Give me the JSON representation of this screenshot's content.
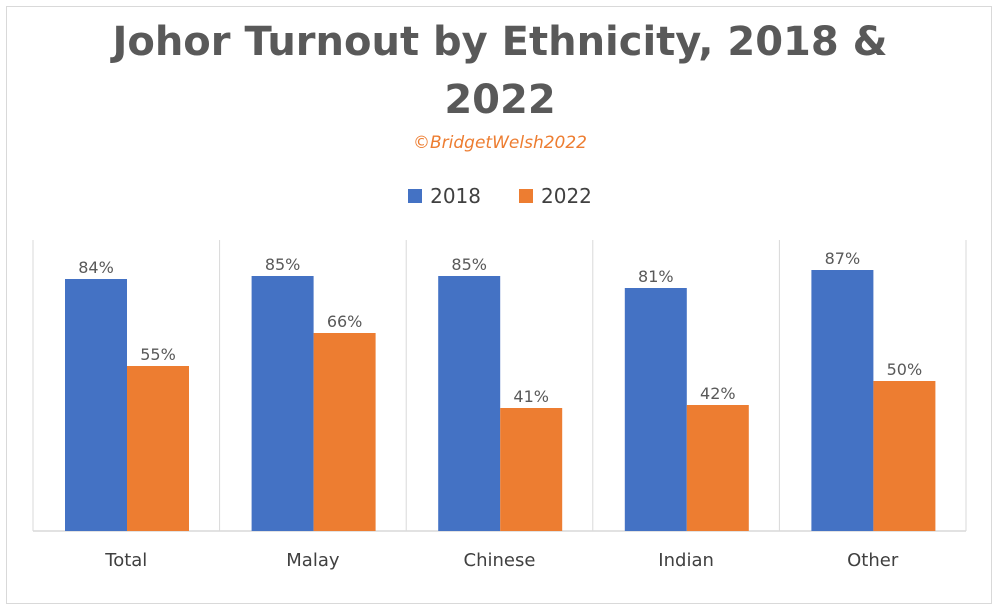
{
  "chart_data": {
    "type": "bar",
    "title_line1": "Johor Turnout by Ethnicity, 2018 &",
    "title_line2": "2022",
    "subtitle": "©BridgetWelsh2022",
    "categories": [
      "Total",
      "Malay",
      "Chinese",
      "Indian",
      "Other"
    ],
    "series": [
      {
        "name": "2018",
        "values": [
          84,
          85,
          85,
          81,
          87
        ],
        "labels": [
          "84%",
          "85%",
          "85%",
          "81%",
          "87%"
        ],
        "color": "#4472c4"
      },
      {
        "name": "2022",
        "values": [
          55,
          66,
          41,
          42,
          50
        ],
        "labels": [
          "55%",
          "66%",
          "41%",
          "42%",
          "50%"
        ],
        "color": "#ed7d31"
      }
    ],
    "ylim": [
      0,
      100
    ],
    "legend_position": "top",
    "grid": "vertical category separators"
  }
}
